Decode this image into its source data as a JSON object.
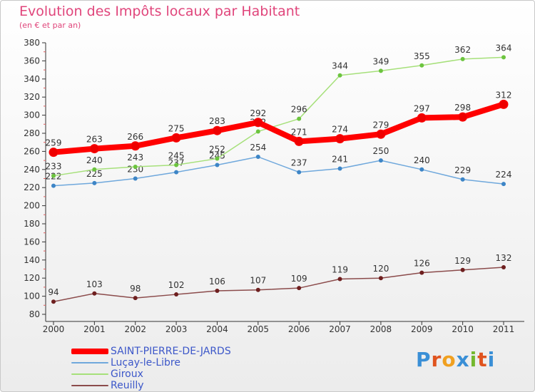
{
  "header": {
    "title": "Evolution des Impôts locaux par Habitant",
    "subtitle": "(en € et par an)"
  },
  "logo": {
    "letters": [
      "P",
      "r",
      "o",
      "x",
      "i",
      "t",
      "i"
    ],
    "colors": [
      "#3a8fd6",
      "#e0541f",
      "#f0a020",
      "#3a8fd6",
      "#74b82e",
      "#e0541f",
      "#3a8fd6"
    ]
  },
  "chart_data": {
    "type": "line",
    "title": "Evolution des Impôts locaux par Habitant",
    "subtitle": "(en € et par an)",
    "xlabel": "",
    "ylabel": "",
    "x": [
      "2000",
      "2001",
      "2002",
      "2003",
      "2004",
      "2005",
      "2006",
      "2007",
      "2008",
      "2009",
      "2010",
      "2011"
    ],
    "ylim": [
      80,
      380
    ],
    "yticks": [
      80,
      100,
      120,
      140,
      160,
      180,
      200,
      220,
      240,
      260,
      280,
      300,
      320,
      340,
      360,
      380
    ],
    "grid": false,
    "legend_position": "bottom-left",
    "series": [
      {
        "name": "SAINT-PIERRE-DE-JARDS",
        "color": "#ff0000",
        "point_color": "#ee0000",
        "emphasis": true,
        "values": [
          259,
          263,
          266,
          275,
          283,
          292,
          271,
          274,
          279,
          297,
          298,
          312
        ]
      },
      {
        "name": "Luçay-le-Libre",
        "color": "#6fa8dc",
        "point_color": "#3d85c6",
        "emphasis": false,
        "values": [
          222,
          225,
          230,
          237,
          245,
          254,
          237,
          241,
          250,
          240,
          229,
          224
        ]
      },
      {
        "name": "Giroux",
        "color": "#a6e07a",
        "point_color": "#6cc43f",
        "emphasis": false,
        "values": [
          233,
          240,
          243,
          245,
          252,
          282,
          296,
          344,
          349,
          355,
          362,
          364
        ]
      },
      {
        "name": "Reuilly",
        "color": "#8b4b4b",
        "point_color": "#6e1f1f",
        "emphasis": false,
        "values": [
          94,
          103,
          98,
          102,
          106,
          107,
          109,
          119,
          120,
          126,
          129,
          132
        ]
      }
    ]
  }
}
